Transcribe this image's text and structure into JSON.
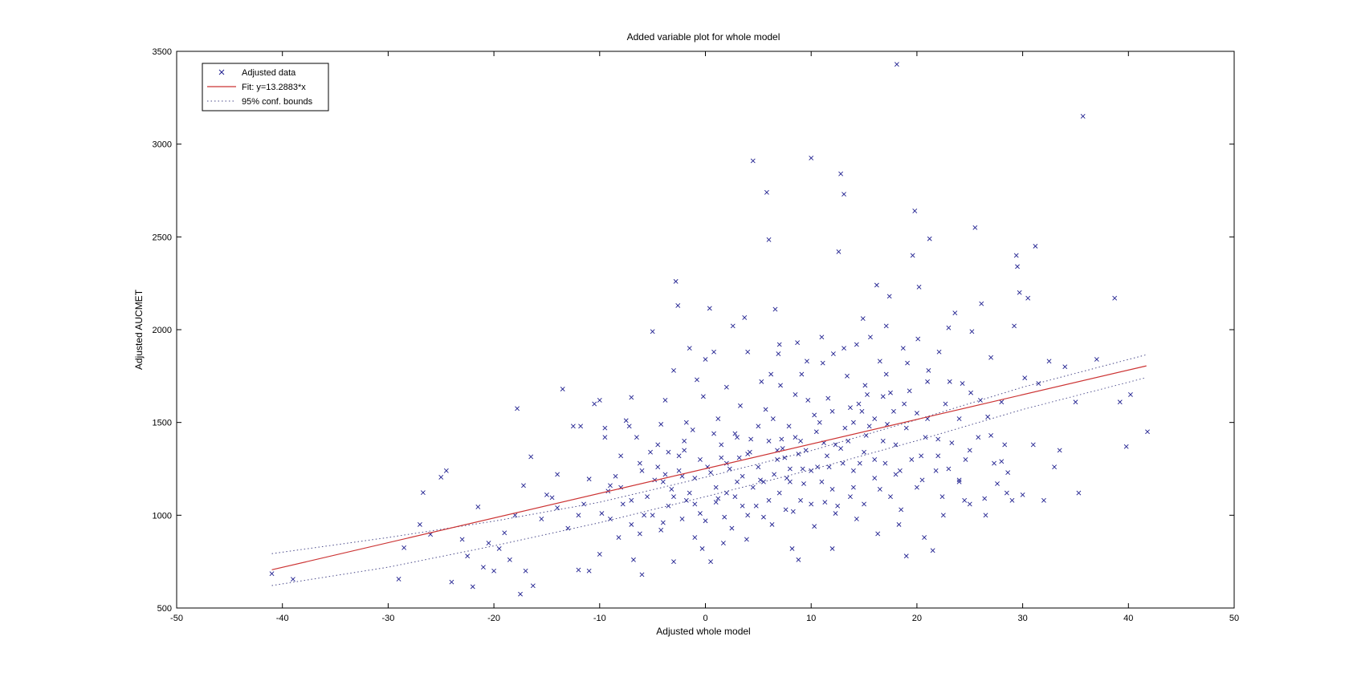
{
  "chart_data": {
    "type": "scatter",
    "title": "Added variable plot for whole model",
    "xlabel": "Adjusted whole model",
    "ylabel": "Adjusted AUCMET",
    "xlim": [
      -50,
      50
    ],
    "ylim": [
      500,
      3500
    ],
    "xticks": [
      "-50",
      "-40",
      "-30",
      "-20",
      "-10",
      "0",
      "10",
      "20",
      "30",
      "40",
      "50"
    ],
    "yticks": [
      "500",
      "1000",
      "1500",
      "2000",
      "2500",
      "3000",
      "3500"
    ],
    "grid": false,
    "legend_position": "top-left",
    "legend": {
      "data": "Adjusted data",
      "fit": "Fit: y=13.2883*x",
      "bounds": "95% conf. bounds"
    },
    "colors": {
      "data": "#1f1f8f",
      "fit": "#cc3333",
      "bounds": "#4a4a8a"
    },
    "fit_line": {
      "slope": 13.2883,
      "x_range": [
        -41,
        41.7
      ],
      "x": [
        -41,
        41.7
      ],
      "y": [
        706,
        1805
      ]
    },
    "conf_upper": {
      "x": [
        -41,
        -30,
        -20,
        -10,
        0,
        10,
        20,
        30,
        41.7
      ],
      "y": [
        793,
        880,
        968,
        1070,
        1205,
        1348,
        1515,
        1690,
        1865
      ]
    },
    "conf_lower": {
      "x": [
        -41,
        -30,
        -20,
        -10,
        0,
        10,
        20,
        30,
        41.7
      ],
      "y": [
        621,
        720,
        835,
        960,
        1100,
        1245,
        1402,
        1570,
        1742
      ]
    },
    "points": [
      [
        -41,
        685
      ],
      [
        -39,
        655
      ],
      [
        -29,
        656
      ],
      [
        -28.5,
        825
      ],
      [
        -27,
        950
      ],
      [
        -26.7,
        1122
      ],
      [
        -26,
        897
      ],
      [
        -25,
        1205
      ],
      [
        -24.5,
        1240
      ],
      [
        -24,
        640
      ],
      [
        -23,
        870
      ],
      [
        -22.5,
        780
      ],
      [
        -22,
        615
      ],
      [
        -21.5,
        1045
      ],
      [
        -21,
        720
      ],
      [
        -20.5,
        850
      ],
      [
        -20,
        700
      ],
      [
        -19.5,
        820
      ],
      [
        -19,
        905
      ],
      [
        -18.5,
        760
      ],
      [
        -18,
        1000
      ],
      [
        -17.8,
        1575
      ],
      [
        -17.5,
        575
      ],
      [
        -17.2,
        1160
      ],
      [
        -17,
        700
      ],
      [
        -16.5,
        1315
      ],
      [
        -16.3,
        620
      ],
      [
        -15.5,
        980
      ],
      [
        -15,
        1110
      ],
      [
        -14.5,
        1095
      ],
      [
        -14,
        1220
      ],
      [
        -13.5,
        1680
      ],
      [
        -13,
        930
      ],
      [
        -12.5,
        1480
      ],
      [
        -12,
        705
      ],
      [
        -11.8,
        1480
      ],
      [
        -11.5,
        1060
      ],
      [
        -11,
        700
      ],
      [
        -11,
        1195
      ],
      [
        -10.5,
        1600
      ],
      [
        -10,
        1620
      ],
      [
        -10,
        790
      ],
      [
        -9.8,
        1010
      ],
      [
        -9.5,
        1470
      ],
      [
        -9.5,
        1420
      ],
      [
        -9.2,
        1130
      ],
      [
        -9,
        980
      ],
      [
        -8.5,
        1210
      ],
      [
        -8,
        1150
      ],
      [
        -7.8,
        1060
      ],
      [
        -7.5,
        1510
      ],
      [
        -7.2,
        1480
      ],
      [
        -7,
        1635
      ],
      [
        -7,
        950
      ],
      [
        -6.8,
        760
      ],
      [
        -6.5,
        1420
      ],
      [
        -6.2,
        1280
      ],
      [
        -6,
        680
      ],
      [
        -5.8,
        1000
      ],
      [
        -5.5,
        1100
      ],
      [
        -5.2,
        1340
      ],
      [
        -5,
        1990
      ],
      [
        -4.8,
        1190
      ],
      [
        -4.5,
        1380
      ],
      [
        -4.2,
        1490
      ],
      [
        -4,
        960
      ],
      [
        -3.8,
        1620
      ],
      [
        -3.5,
        1050
      ],
      [
        -3.2,
        1140
      ],
      [
        -3,
        750
      ],
      [
        -3,
        1780
      ],
      [
        -2.8,
        2260
      ],
      [
        -2.6,
        2130
      ],
      [
        -2.5,
        1320
      ],
      [
        -2.2,
        1210
      ],
      [
        -2,
        1400
      ],
      [
        -1.8,
        1080
      ],
      [
        -1.5,
        1900
      ],
      [
        -1.2,
        1460
      ],
      [
        -1,
        1200
      ],
      [
        -1,
        880
      ],
      [
        -0.8,
        1730
      ],
      [
        -0.5,
        1010
      ],
      [
        -0.2,
        1640
      ],
      [
        0,
        1840
      ],
      [
        0.2,
        1260
      ],
      [
        0.4,
        2115
      ],
      [
        0.5,
        750
      ],
      [
        0.8,
        1880
      ],
      [
        1,
        1070
      ],
      [
        1.2,
        1520
      ],
      [
        1.5,
        1310
      ],
      [
        1.8,
        990
      ],
      [
        2,
        1690
      ],
      [
        2.3,
        1250
      ],
      [
        2.6,
        2020
      ],
      [
        2.8,
        1100
      ],
      [
        3,
        1420
      ],
      [
        3.3,
        1590
      ],
      [
        3.5,
        1210
      ],
      [
        3.7,
        2065
      ],
      [
        4,
        1880
      ],
      [
        4.2,
        1340
      ],
      [
        4.5,
        2910
      ],
      [
        4.8,
        1050
      ],
      [
        5,
        1480
      ],
      [
        5.3,
        1720
      ],
      [
        5.5,
        1180
      ],
      [
        5.8,
        2740
      ],
      [
        6,
        2485
      ],
      [
        6.2,
        1760
      ],
      [
        6.4,
        1520
      ],
      [
        6.6,
        2110
      ],
      [
        6.8,
        1300
      ],
      [
        7,
        1920
      ],
      [
        7.3,
        1360
      ],
      [
        7.6,
        1030
      ],
      [
        7.9,
        1480
      ],
      [
        8.2,
        820
      ],
      [
        8.5,
        1650
      ],
      [
        8.8,
        760
      ],
      [
        9,
        1400
      ],
      [
        9.3,
        1170
      ],
      [
        9.6,
        1830
      ],
      [
        10,
        2925
      ],
      [
        10.3,
        1540
      ],
      [
        10.6,
        1260
      ],
      [
        11,
        1960
      ],
      [
        11.3,
        1070
      ],
      [
        11.6,
        1630
      ],
      [
        12,
        820
      ],
      [
        12.3,
        1380
      ],
      [
        12.6,
        2420
      ],
      [
        12.8,
        2840
      ],
      [
        13.1,
        2730
      ],
      [
        13.4,
        1750
      ],
      [
        13.7,
        1100
      ],
      [
        14,
        1500
      ],
      [
        14.3,
        1920
      ],
      [
        14.6,
        1280
      ],
      [
        15,
        1060
      ],
      [
        15.3,
        1650
      ],
      [
        15.6,
        1960
      ],
      [
        16,
        1200
      ],
      [
        16.2,
        2240
      ],
      [
        16.5,
        1830
      ],
      [
        16.8,
        1400
      ],
      [
        17.1,
        2020
      ],
      [
        17.5,
        1100
      ],
      [
        17.8,
        1560
      ],
      [
        18.1,
        3430
      ],
      [
        18.4,
        1240
      ],
      [
        18.7,
        1900
      ],
      [
        19,
        780
      ],
      [
        19.3,
        1670
      ],
      [
        19.6,
        2400
      ],
      [
        19.8,
        2640
      ],
      [
        20.1,
        1950
      ],
      [
        20.4,
        1320
      ],
      [
        20.7,
        880
      ],
      [
        21,
        1520
      ],
      [
        21.2,
        2490
      ],
      [
        21.5,
        810
      ],
      [
        21.8,
        1240
      ],
      [
        22.1,
        1880
      ],
      [
        22.4,
        1100
      ],
      [
        22.7,
        1600
      ],
      [
        23,
        2010
      ],
      [
        23.3,
        1390
      ],
      [
        23.6,
        2090
      ],
      [
        24,
        1180
      ],
      [
        24.3,
        1710
      ],
      [
        24.6,
        1300
      ],
      [
        25,
        1060
      ],
      [
        25.2,
        1990
      ],
      [
        25.5,
        2550
      ],
      [
        25.8,
        1420
      ],
      [
        26.1,
        2140
      ],
      [
        26.4,
        1090
      ],
      [
        26.7,
        1530
      ],
      [
        27,
        1850
      ],
      [
        27.3,
        1280
      ],
      [
        27.6,
        1170
      ],
      [
        28,
        1610
      ],
      [
        28.3,
        1380
      ],
      [
        28.6,
        1230
      ],
      [
        29,
        1080
      ],
      [
        29.2,
        2020
      ],
      [
        29.4,
        2400
      ],
      [
        29.5,
        2340
      ],
      [
        29.7,
        2200
      ],
      [
        30,
        1110
      ],
      [
        30.2,
        1740
      ],
      [
        30.5,
        2170
      ],
      [
        31,
        1380
      ],
      [
        31.2,
        2450
      ],
      [
        31.5,
        1710
      ],
      [
        32,
        1080
      ],
      [
        32.5,
        1830
      ],
      [
        33,
        1260
      ],
      [
        33.5,
        1350
      ],
      [
        34,
        1800
      ],
      [
        35,
        1610
      ],
      [
        35.3,
        1120
      ],
      [
        35.7,
        3150
      ],
      [
        37,
        1840
      ],
      [
        38.7,
        2170
      ],
      [
        39.2,
        1610
      ],
      [
        39.8,
        1370
      ],
      [
        40.2,
        1650
      ],
      [
        41.8,
        1450
      ],
      [
        -8,
        1320
      ],
      [
        -6,
        1240
      ],
      [
        -4,
        1180
      ],
      [
        -2,
        1350
      ],
      [
        -1,
        1060
      ],
      [
        0,
        970
      ],
      [
        1,
        1150
      ],
      [
        1.5,
        1380
      ],
      [
        2,
        1280
      ],
      [
        2.5,
        930
      ],
      [
        3,
        1180
      ],
      [
        3.5,
        1050
      ],
      [
        4,
        1330
      ],
      [
        4.5,
        1150
      ],
      [
        5,
        1260
      ],
      [
        5.5,
        990
      ],
      [
        6,
        1400
      ],
      [
        6.5,
        1220
      ],
      [
        7,
        1120
      ],
      [
        7.5,
        1310
      ],
      [
        8,
        1250
      ],
      [
        8.5,
        1420
      ],
      [
        9,
        1080
      ],
      [
        9.5,
        1350
      ],
      [
        10,
        1240
      ],
      [
        10.5,
        1450
      ],
      [
        11,
        1180
      ],
      [
        11.5,
        1320
      ],
      [
        12,
        1560
      ],
      [
        12.5,
        1050
      ],
      [
        13,
        1280
      ],
      [
        13.5,
        1400
      ],
      [
        14,
        1150
      ],
      [
        14.5,
        1600
      ],
      [
        15,
        1340
      ],
      [
        15.5,
        1480
      ],
      [
        16,
        1520
      ],
      [
        16.5,
        1140
      ],
      [
        17,
        1280
      ],
      [
        17.5,
        1660
      ],
      [
        18,
        1380
      ],
      [
        18.5,
        1030
      ],
      [
        19,
        1470
      ],
      [
        19.5,
        1300
      ],
      [
        20,
        1550
      ],
      [
        20.5,
        1190
      ],
      [
        21,
        1720
      ],
      [
        22,
        1410
      ],
      [
        23,
        1250
      ],
      [
        24,
        1520
      ],
      [
        25,
        1350
      ],
      [
        26,
        1620
      ],
      [
        27,
        1430
      ],
      [
        28,
        1290
      ],
      [
        -3,
        1100
      ],
      [
        -5,
        1000
      ],
      [
        -7,
        1080
      ],
      [
        -9,
        1160
      ],
      [
        -12,
        1000
      ],
      [
        -14,
        1040
      ],
      [
        2,
        1120
      ],
      [
        4,
        1000
      ],
      [
        6,
        1080
      ],
      [
        8,
        1180
      ],
      [
        10,
        1060
      ],
      [
        12,
        1140
      ],
      [
        14,
        1240
      ],
      [
        16,
        1300
      ],
      [
        18,
        1220
      ],
      [
        20,
        1150
      ],
      [
        22,
        1320
      ],
      [
        24,
        1190
      ],
      [
        0.5,
        1230
      ],
      [
        1.2,
        1090
      ],
      [
        3.2,
        1310
      ],
      [
        5.2,
        1190
      ],
      [
        7.2,
        1410
      ],
      [
        9.2,
        1250
      ],
      [
        11.2,
        1390
      ],
      [
        13.2,
        1470
      ],
      [
        15.2,
        1430
      ],
      [
        17.2,
        1490
      ],
      [
        -0.5,
        1300
      ],
      [
        -1.5,
        1120
      ],
      [
        -2.5,
        1240
      ],
      [
        -3.5,
        1340
      ],
      [
        -4.5,
        1260
      ],
      [
        6.8,
        1350
      ],
      [
        8.8,
        1330
      ],
      [
        10.8,
        1500
      ],
      [
        12.8,
        1360
      ],
      [
        14.8,
        1560
      ],
      [
        16.8,
        1640
      ],
      [
        18.8,
        1600
      ],
      [
        20.8,
        1420
      ],
      [
        5.7,
        1570
      ],
      [
        7.7,
        1200
      ],
      [
        9.7,
        1620
      ],
      [
        11.7,
        1260
      ],
      [
        13.7,
        1580
      ],
      [
        4.3,
        1410
      ],
      [
        2.8,
        1440
      ],
      [
        0.8,
        1440
      ],
      [
        -1.8,
        1500
      ],
      [
        -3.8,
        1220
      ],
      [
        3.9,
        870
      ],
      [
        6.3,
        950
      ],
      [
        8.3,
        1020
      ],
      [
        10.3,
        940
      ],
      [
        12.3,
        1010
      ],
      [
        14.3,
        980
      ],
      [
        16.3,
        900
      ],
      [
        18.3,
        950
      ],
      [
        -0.3,
        820
      ],
      [
        1.7,
        850
      ],
      [
        -2.2,
        980
      ],
      [
        -4.2,
        920
      ],
      [
        -6.2,
        900
      ],
      [
        -8.2,
        880
      ],
      [
        22.5,
        1000
      ],
      [
        24.5,
        1080
      ],
      [
        26.5,
        1000
      ],
      [
        28.5,
        1120
      ],
      [
        7.1,
        1700
      ],
      [
        9.1,
        1760
      ],
      [
        11.1,
        1820
      ],
      [
        13.1,
        1900
      ],
      [
        15.1,
        1700
      ],
      [
        17.1,
        1760
      ],
      [
        19.1,
        1820
      ],
      [
        21.1,
        1780
      ],
      [
        23.1,
        1720
      ],
      [
        25.1,
        1660
      ],
      [
        6.9,
        1870
      ],
      [
        8.7,
        1930
      ],
      [
        12.1,
        1870
      ],
      [
        14.9,
        2060
      ],
      [
        17.4,
        2180
      ],
      [
        20.2,
        2230
      ]
    ]
  }
}
